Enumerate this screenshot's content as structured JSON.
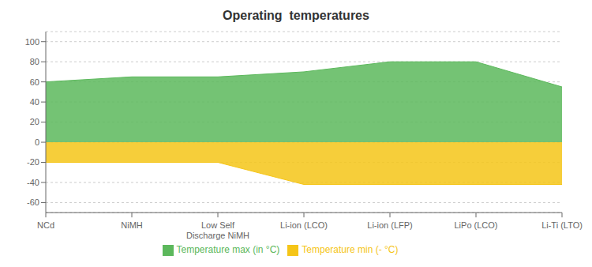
{
  "chart_data": {
    "type": "area",
    "title": "Operating  temperatures",
    "categories": [
      "NCd",
      "NiMH",
      "Low Self\nDischarge NiMH",
      "Li-ion (LCO)",
      "Li-ion (LFP)",
      "LiPo (LCO)",
      "Li-Ti (LTO)"
    ],
    "series": [
      {
        "name": "Temperature min (- °C)",
        "color": "#f5c518",
        "values": [
          -20,
          -20,
          -20,
          -42,
          -42,
          -42,
          -42
        ]
      },
      {
        "name": "Temperature max (in °C)",
        "color": "#5cb85c",
        "values": [
          60,
          65,
          65,
          70,
          80,
          80,
          55
        ]
      }
    ],
    "ylim": [
      -70,
      110
    ],
    "yticks": [
      -60,
      -40,
      -20,
      0,
      20,
      40,
      60,
      80,
      100
    ],
    "grid": true,
    "legend": "bottom"
  }
}
